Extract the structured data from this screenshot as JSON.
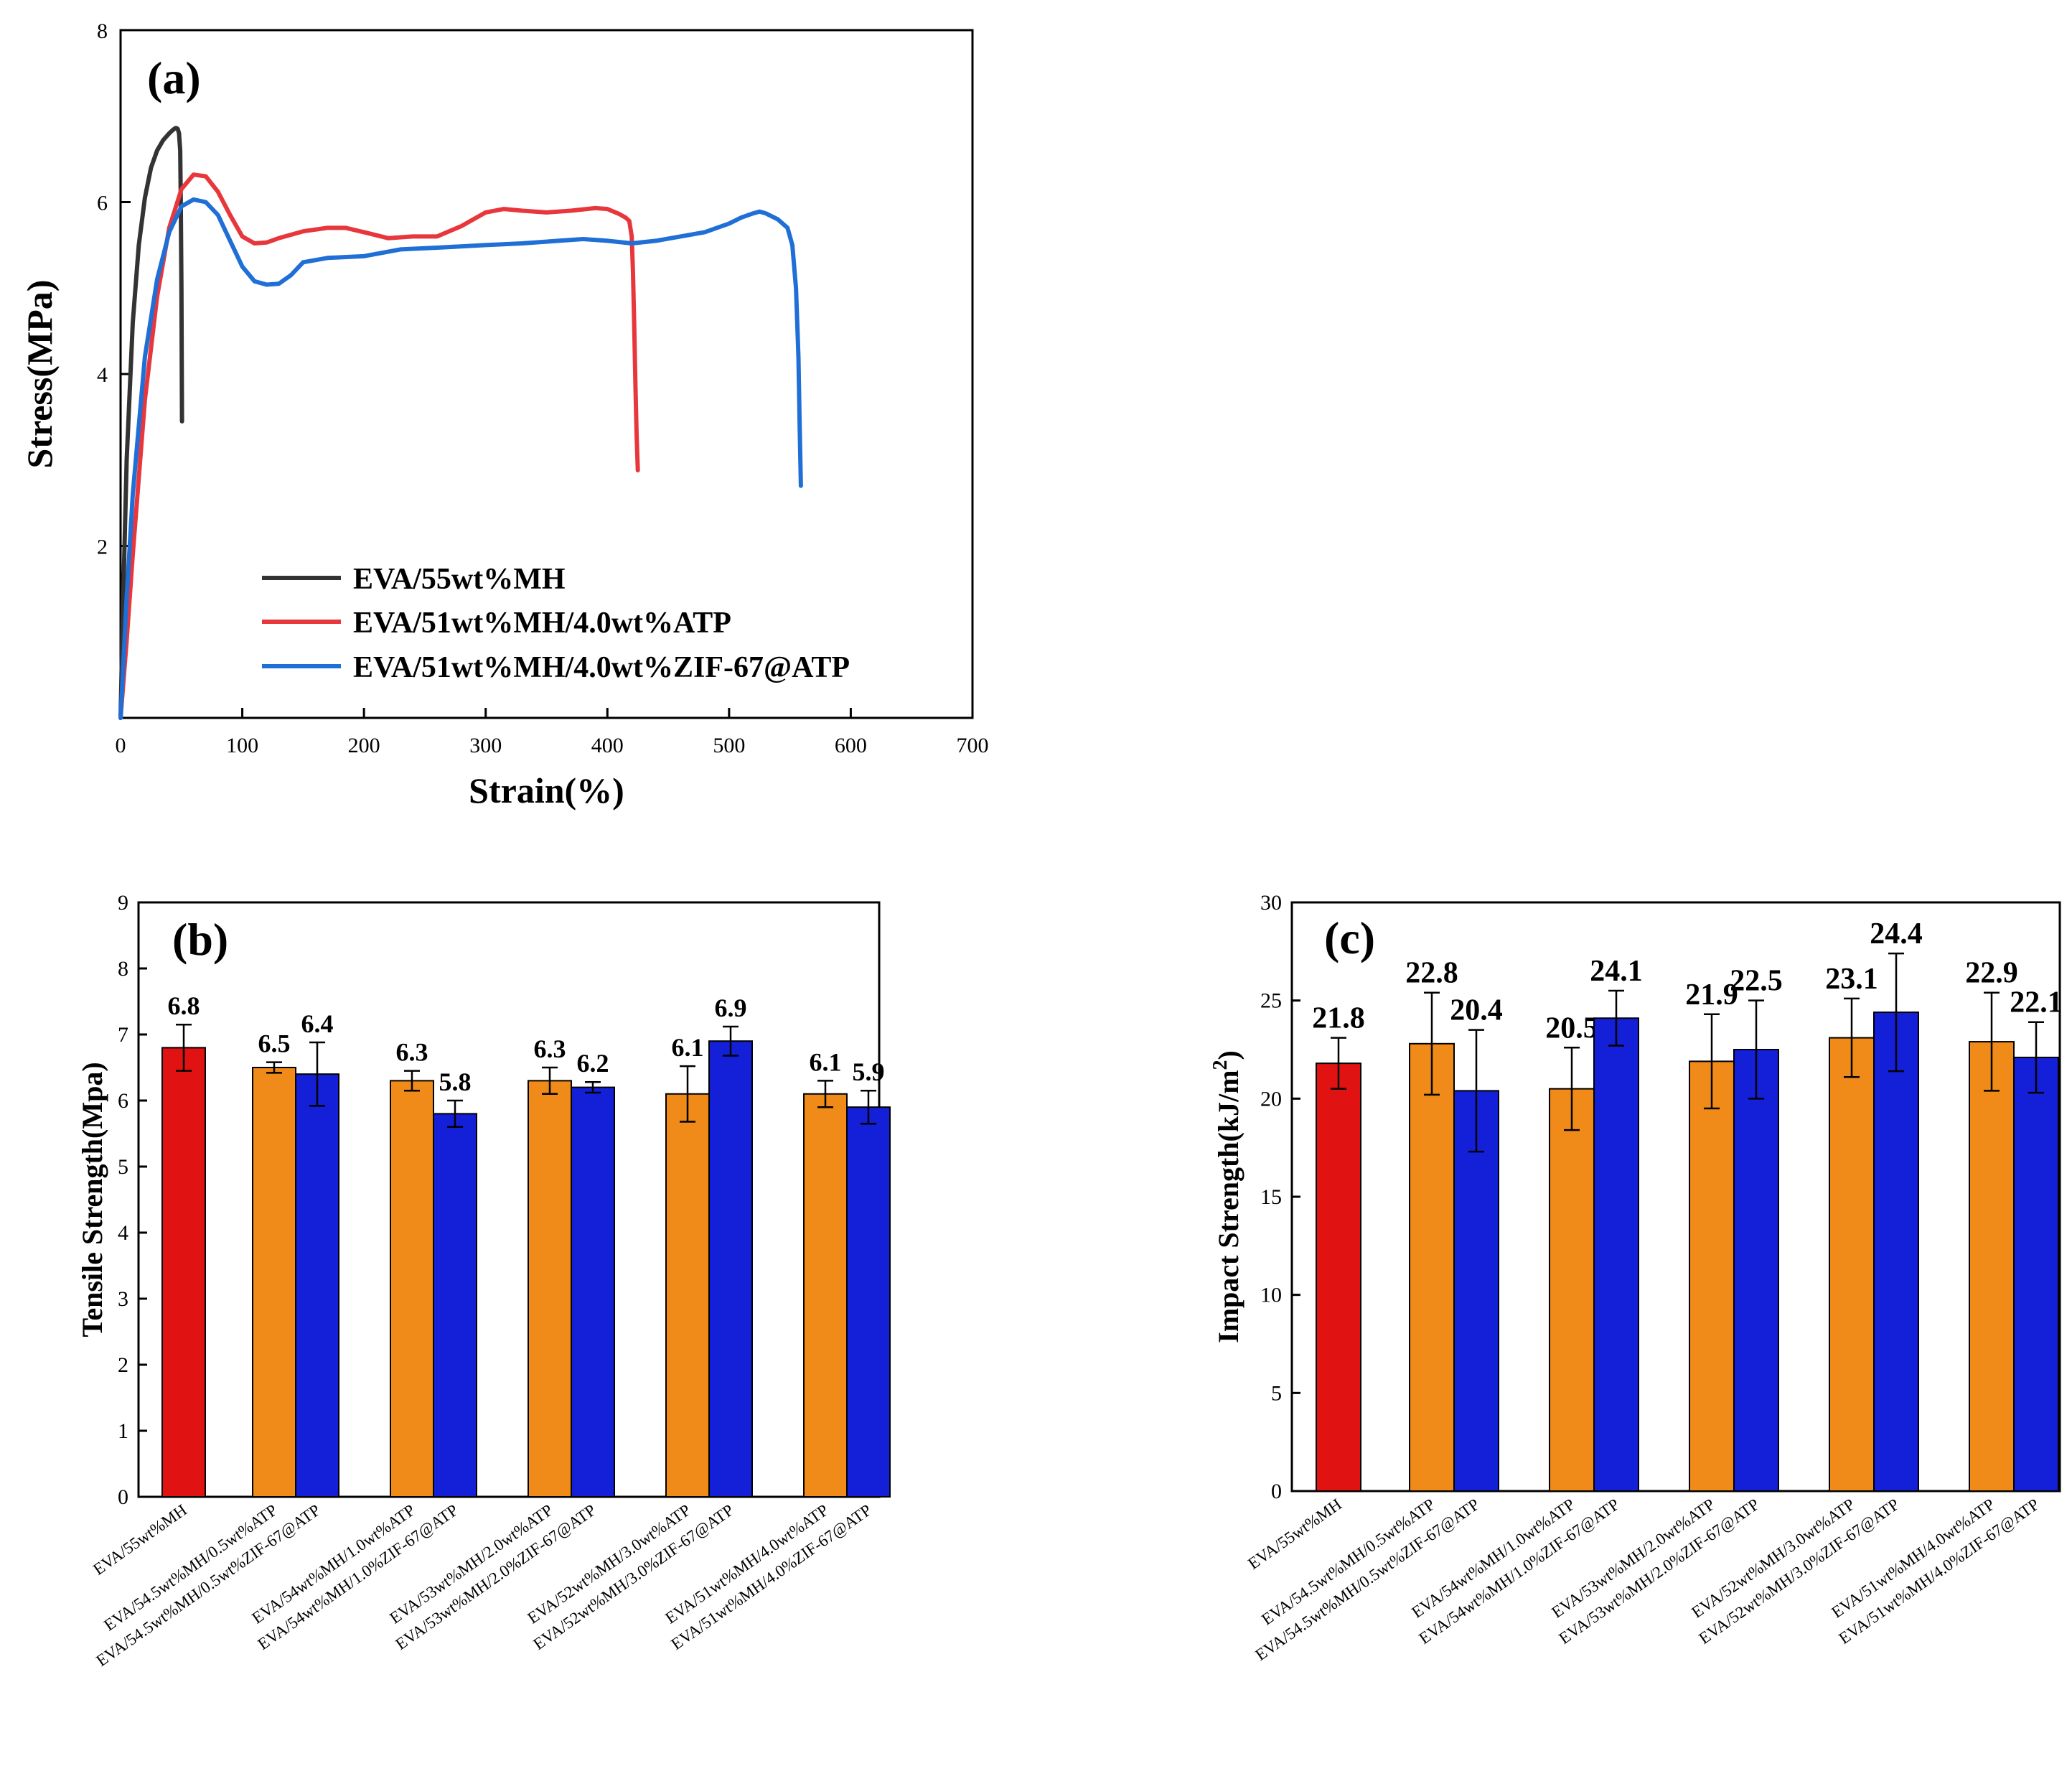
{
  "chart_data": [
    {
      "type": "line",
      "panel_label": "(a)",
      "xlabel": "Strain(%)",
      "ylabel": "Stress(MPa)",
      "xlim": [
        0,
        700
      ],
      "ylim": [
        0,
        8
      ],
      "xticks": [
        0,
        100,
        200,
        300,
        400,
        500,
        600,
        700
      ],
      "yticks": [
        2,
        4,
        6,
        8
      ],
      "grid": false,
      "legend_position": "bottom-center",
      "series": [
        {
          "name": "EVA/55wt%MH",
          "color": "#333333",
          "x": [
            0,
            2,
            5,
            10,
            15,
            20,
            25,
            30,
            35,
            40,
            43,
            45,
            46,
            47,
            48,
            49,
            49.5,
            50,
            50.3,
            50.5
          ],
          "y": [
            0,
            1.3,
            3.0,
            4.6,
            5.5,
            6.05,
            6.4,
            6.6,
            6.72,
            6.8,
            6.84,
            6.86,
            6.86,
            6.85,
            6.8,
            6.6,
            6.0,
            5.0,
            4.0,
            3.45
          ]
        },
        {
          "name": "EVA/51wt%MH/4.0wt%ATP",
          "color": "#e8373c",
          "x": [
            0,
            5,
            10,
            20,
            30,
            40,
            50,
            60,
            70,
            80,
            90,
            100,
            110,
            120,
            130,
            150,
            170,
            185,
            200,
            220,
            240,
            260,
            280,
            300,
            315,
            330,
            350,
            370,
            390,
            400,
            410,
            415,
            418,
            420,
            421,
            422,
            423,
            424,
            425
          ],
          "y": [
            0,
            0.9,
            1.9,
            3.7,
            4.9,
            5.7,
            6.15,
            6.32,
            6.3,
            6.12,
            5.85,
            5.6,
            5.52,
            5.53,
            5.58,
            5.66,
            5.7,
            5.7,
            5.65,
            5.58,
            5.6,
            5.6,
            5.72,
            5.88,
            5.92,
            5.9,
            5.88,
            5.9,
            5.93,
            5.92,
            5.86,
            5.82,
            5.78,
            5.6,
            5.2,
            4.6,
            3.9,
            3.3,
            2.88
          ]
        },
        {
          "name": "EVA/51wt%MH/4.0wt%ZIF-67@ATP",
          "color": "#1f6fd6",
          "x": [
            0,
            5,
            10,
            20,
            30,
            40,
            50,
            60,
            70,
            80,
            90,
            100,
            110,
            120,
            130,
            140,
            150,
            170,
            200,
            230,
            260,
            300,
            330,
            360,
            380,
            400,
            420,
            440,
            460,
            480,
            500,
            510,
            520,
            525,
            530,
            540,
            548,
            552,
            555,
            557,
            558,
            559
          ],
          "y": [
            0,
            1.4,
            2.6,
            4.2,
            5.1,
            5.65,
            5.95,
            6.03,
            6.0,
            5.85,
            5.55,
            5.25,
            5.08,
            5.04,
            5.05,
            5.15,
            5.3,
            5.35,
            5.37,
            5.45,
            5.47,
            5.5,
            5.52,
            5.55,
            5.57,
            5.55,
            5.52,
            5.55,
            5.6,
            5.65,
            5.75,
            5.82,
            5.87,
            5.89,
            5.87,
            5.8,
            5.7,
            5.5,
            5.0,
            4.2,
            3.4,
            2.7
          ]
        }
      ]
    },
    {
      "type": "bar",
      "panel_label": "(b)",
      "xlabel": "",
      "ylabel": "Tensile Strength(Mpa)",
      "ylim": [
        0,
        9
      ],
      "yticks": [
        0,
        1,
        2,
        3,
        4,
        5,
        6,
        7,
        8,
        9
      ],
      "grid": false,
      "bars": [
        {
          "category": "EVA/55wt%MH",
          "value": 6.8,
          "label": "6.8",
          "err": 0.35,
          "color": "#e01212"
        },
        {
          "category": "EVA/54.5wt%MH/0.5wt%ATP",
          "value": 6.5,
          "label": "6.5",
          "err": 0.08,
          "color": "#f08a18"
        },
        {
          "category": "EVA/54.5wt%MH/0.5wt%ZIF-67@ATP",
          "value": 6.4,
          "label": "6.4",
          "err": 0.48,
          "color": "#1420d8"
        },
        {
          "category": "EVA/54wt%MH/1.0wt%ATP",
          "value": 6.3,
          "label": "6.3",
          "err": 0.15,
          "color": "#f08a18"
        },
        {
          "category": "EVA/54wt%MH/1.0%ZIF-67@ATP",
          "value": 5.8,
          "label": "5.8",
          "err": 0.2,
          "color": "#1420d8"
        },
        {
          "category": "EVA/53wt%MH/2.0wt%ATP",
          "value": 6.3,
          "label": "6.3",
          "err": 0.2,
          "color": "#f08a18"
        },
        {
          "category": "EVA/53wt%MH/2.0%ZIF-67@ATP",
          "value": 6.2,
          "label": "6.2",
          "err": 0.08,
          "color": "#1420d8"
        },
        {
          "category": "EVA/52wt%MH/3.0wt%ATP",
          "value": 6.1,
          "label": "6.1",
          "err": 0.42,
          "color": "#f08a18"
        },
        {
          "category": "EVA/52wt%MH/3.0%ZIF-67@ATP",
          "value": 6.9,
          "label": "6.9",
          "err": 0.22,
          "color": "#1420d8"
        },
        {
          "category": "EVA/51wt%MH/4.0wt%ATP",
          "value": 6.1,
          "label": "6.1",
          "err": 0.2,
          "color": "#f08a18"
        },
        {
          "category": "EVA/51wt%MH/4.0%ZIF-67@ATP",
          "value": 5.9,
          "label": "5.9",
          "err": 0.25,
          "color": "#1420d8"
        }
      ]
    },
    {
      "type": "bar",
      "panel_label": "(c)",
      "xlabel": "",
      "ylabel": "Impact Strength(kJ/m",
      "ylabel_sup": "2",
      "ylabel_close": ")",
      "ylim": [
        0,
        30
      ],
      "yticks": [
        0,
        5,
        10,
        15,
        20,
        25,
        30
      ],
      "grid": false,
      "bars": [
        {
          "category": "EVA/55wt%MH",
          "value": 21.8,
          "label": "21.8",
          "err": 1.3,
          "color": "#e01212"
        },
        {
          "category": "EVA/54.5wt%MH/0.5wt%ATP",
          "value": 22.8,
          "label": "22.8",
          "err": 2.6,
          "color": "#f08a18"
        },
        {
          "category": "EVA/54.5wt%MH/0.5wt%ZIF-67@ATP",
          "value": 20.4,
          "label": "20.4",
          "err": 3.1,
          "color": "#1420d8"
        },
        {
          "category": "EVA/54wt%MH/1.0wt%ATP",
          "value": 20.5,
          "label": "20.5",
          "err": 2.1,
          "color": "#f08a18"
        },
        {
          "category": "EVA/54wt%MH/1.0%ZIF-67@ATP",
          "value": 24.1,
          "label": "24.1",
          "err": 1.4,
          "color": "#1420d8"
        },
        {
          "category": "EVA/53wt%MH/2.0wt%ATP",
          "value": 21.9,
          "label": "21.9",
          "err": 2.4,
          "color": "#f08a18"
        },
        {
          "category": "EVA/53wt%MH/2.0%ZIF-67@ATP",
          "value": 22.5,
          "label": "22.5",
          "err": 2.5,
          "color": "#1420d8"
        },
        {
          "category": "EVA/52wt%MH/3.0wt%ATP",
          "value": 23.1,
          "label": "23.1",
          "err": 2.0,
          "color": "#f08a18"
        },
        {
          "category": "EVA/52wt%MH/3.0%ZIF-67@ATP",
          "value": 24.4,
          "label": "24.4",
          "err": 3.0,
          "color": "#1420d8"
        },
        {
          "category": "EVA/51wt%MH/4.0wt%ATP",
          "value": 22.9,
          "label": "22.9",
          "err": 2.5,
          "color": "#f08a18"
        },
        {
          "category": "EVA/51wt%MH/4.0%ZIF-67@ATP",
          "value": 22.1,
          "label": "22.1",
          "err": 1.8,
          "color": "#1420d8"
        }
      ]
    }
  ]
}
